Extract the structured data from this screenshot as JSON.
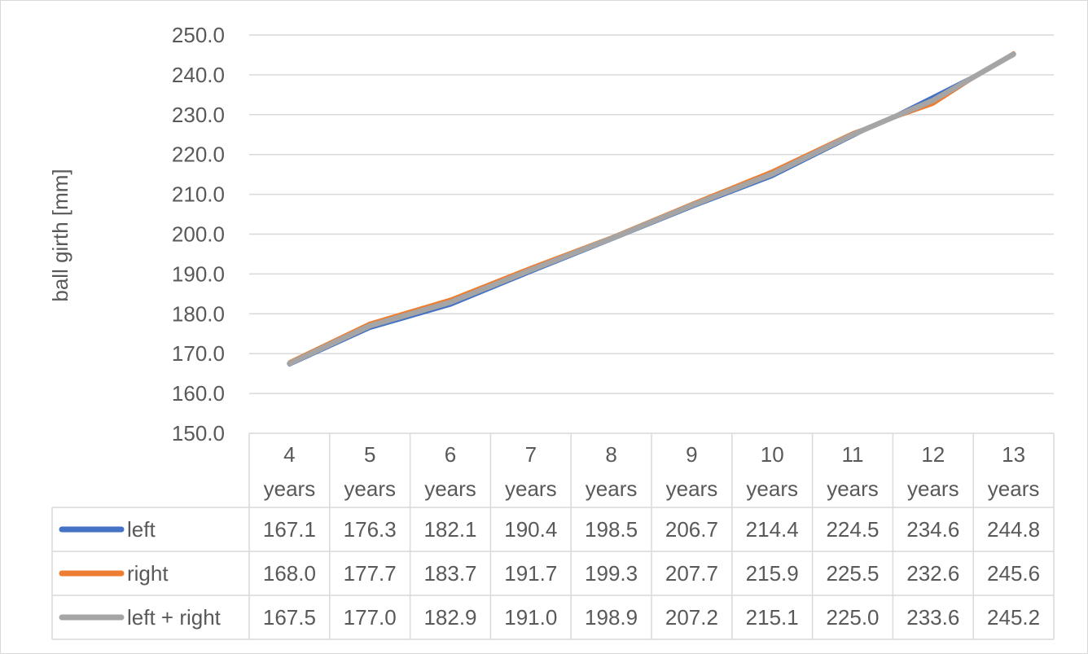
{
  "chart_data": {
    "type": "line",
    "categories": [
      [
        "4",
        "years"
      ],
      [
        "5",
        "years"
      ],
      [
        "6",
        "years"
      ],
      [
        "7",
        "years"
      ],
      [
        "8",
        "years"
      ],
      [
        "9",
        "years"
      ],
      [
        "10",
        "years"
      ],
      [
        "11",
        "years"
      ],
      [
        "12",
        "years"
      ],
      [
        "13",
        "years"
      ]
    ],
    "ylabel": "ball girth [mm]",
    "ylim": [
      150.0,
      250.0
    ],
    "y_tick_step": 10,
    "y_tick_decimals": 1,
    "grid": true,
    "legend": "data-table",
    "series": [
      {
        "name": "left",
        "color": "#4472C4",
        "values": [
          167.1,
          176.3,
          182.1,
          190.4,
          198.5,
          206.7,
          214.4,
          224.5,
          234.6,
          244.8
        ]
      },
      {
        "name": "right",
        "color": "#ED7D31",
        "values": [
          168.0,
          177.7,
          183.7,
          191.7,
          199.3,
          207.7,
          215.9,
          225.5,
          232.6,
          245.6
        ]
      },
      {
        "name": "left + right",
        "color": "#A5A5A5",
        "values": [
          167.5,
          177.0,
          182.9,
          191.0,
          198.9,
          207.2,
          215.1,
          225.0,
          233.6,
          245.2
        ]
      }
    ]
  }
}
